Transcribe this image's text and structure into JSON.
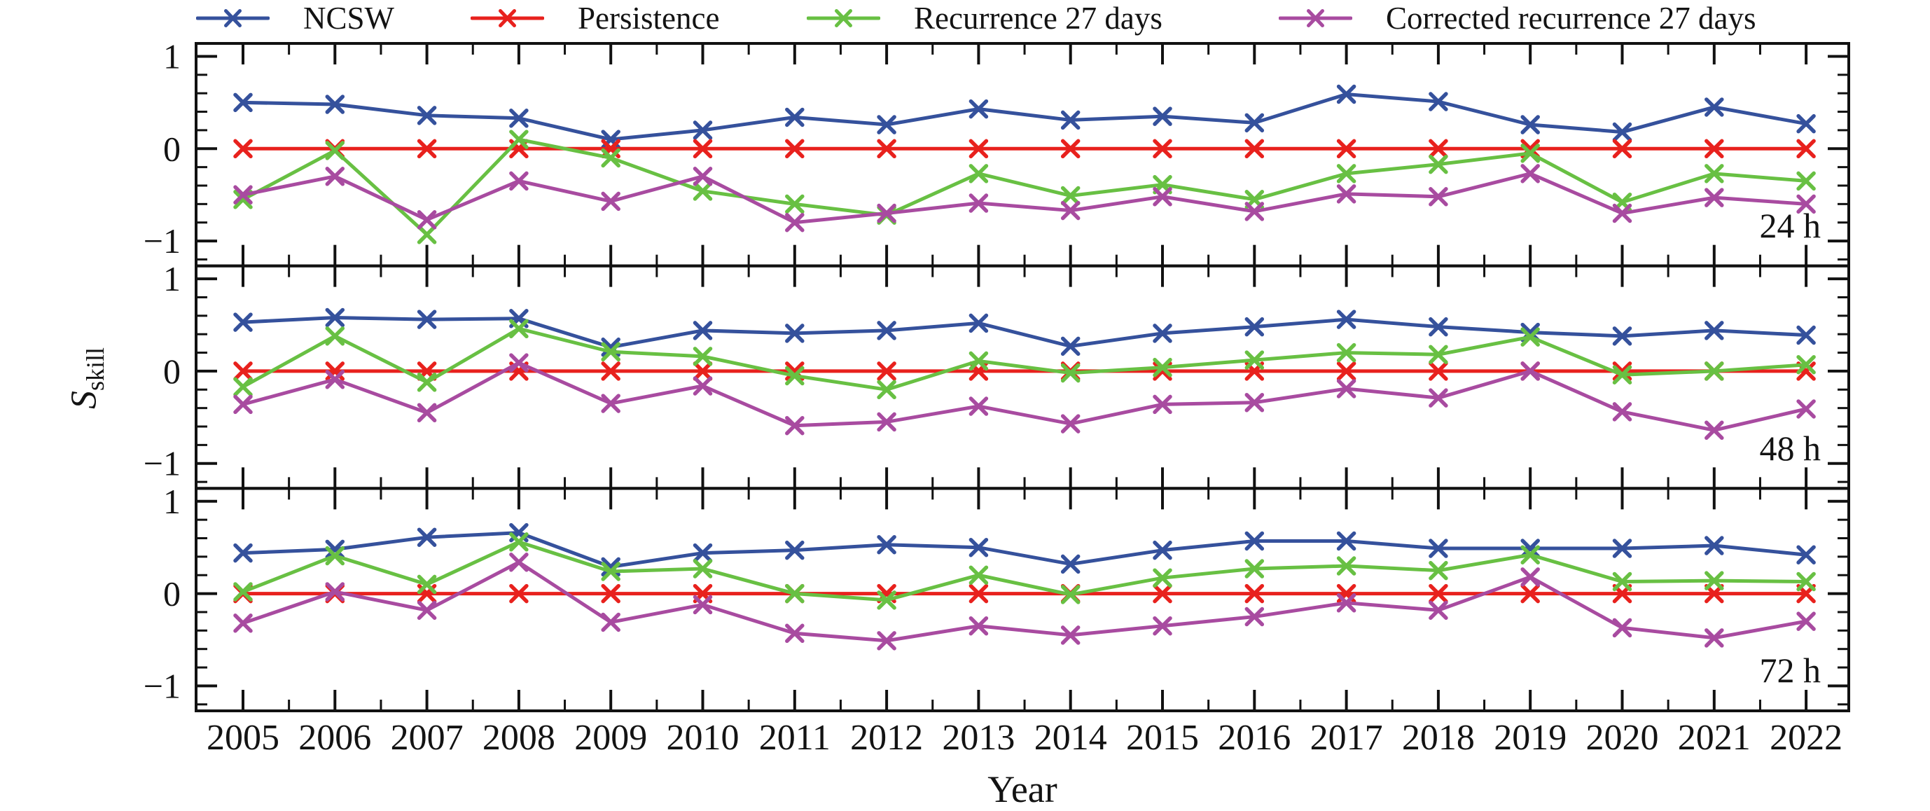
{
  "chart_data": {
    "type": "line",
    "title": "",
    "xlabel": "Year",
    "ylabel_base": "S",
    "ylabel_sub": "skill",
    "years": [
      2005,
      2006,
      2007,
      2008,
      2009,
      2010,
      2011,
      2012,
      2013,
      2014,
      2015,
      2016,
      2017,
      2018,
      2019,
      2020,
      2021,
      2022
    ],
    "ylim": [
      -1.27,
      1.14
    ],
    "yticks_major": [
      1,
      0,
      -1
    ],
    "ytick_labels": [
      "1",
      "0",
      "−1"
    ],
    "yticks_minor": [
      -1.2,
      -0.8,
      -0.6,
      -0.4,
      -0.2,
      0.2,
      0.4,
      0.6,
      0.8
    ],
    "x_minor_step": 0.5,
    "grid": false,
    "legend_position": "top",
    "legend": [
      {
        "label": "NCSW",
        "color": "#35519c"
      },
      {
        "label": "Persistence",
        "color": "#e8211d"
      },
      {
        "label": "Recurrence 27 days",
        "color": "#68c043"
      },
      {
        "label": "Corrected recurrence 27 days",
        "color": "#a84ba0"
      }
    ],
    "panels": [
      {
        "label": "24 h",
        "series": [
          [
            0.5,
            0.48,
            0.36,
            0.33,
            0.1,
            0.2,
            0.34,
            0.26,
            0.43,
            0.31,
            0.35,
            0.28,
            0.59,
            0.51,
            0.26,
            0.18,
            0.45,
            0.27
          ],
          [
            0,
            0,
            0,
            0,
            0,
            0,
            0,
            0,
            0,
            0,
            0,
            0,
            0,
            0,
            0,
            0,
            0,
            0
          ],
          [
            -0.55,
            -0.02,
            -0.93,
            0.1,
            -0.1,
            -0.46,
            -0.6,
            -0.72,
            -0.27,
            -0.51,
            -0.39,
            -0.55,
            -0.27,
            -0.17,
            -0.05,
            -0.58,
            -0.27,
            -0.35
          ],
          [
            -0.5,
            -0.3,
            -0.77,
            -0.35,
            -0.57,
            -0.3,
            -0.8,
            -0.7,
            -0.59,
            -0.67,
            -0.52,
            -0.68,
            -0.49,
            -0.52,
            -0.27,
            -0.7,
            -0.53,
            -0.6
          ]
        ]
      },
      {
        "label": "48 h",
        "series": [
          [
            0.53,
            0.58,
            0.56,
            0.57,
            0.26,
            0.44,
            0.41,
            0.44,
            0.52,
            0.27,
            0.41,
            0.48,
            0.56,
            0.48,
            0.42,
            0.38,
            0.44,
            0.39
          ],
          [
            0,
            0,
            0,
            0,
            0,
            0,
            0,
            0,
            0,
            0,
            0,
            0,
            0,
            0,
            0,
            0,
            0,
            0
          ],
          [
            -0.17,
            0.38,
            -0.12,
            0.46,
            0.21,
            0.16,
            -0.05,
            -0.2,
            0.11,
            -0.02,
            0.04,
            0.12,
            0.2,
            0.18,
            0.37,
            -0.04,
            0.0,
            0.07
          ],
          [
            -0.36,
            -0.09,
            -0.45,
            0.09,
            -0.35,
            -0.16,
            -0.59,
            -0.55,
            -0.38,
            -0.57,
            -0.36,
            -0.34,
            -0.19,
            -0.29,
            0.0,
            -0.44,
            -0.64,
            -0.41
          ]
        ]
      },
      {
        "label": "72 h",
        "series": [
          [
            0.44,
            0.48,
            0.61,
            0.66,
            0.29,
            0.44,
            0.47,
            0.53,
            0.5,
            0.32,
            0.47,
            0.57,
            0.57,
            0.49,
            0.49,
            0.49,
            0.52,
            0.42
          ],
          [
            0,
            0,
            0,
            0,
            0,
            0,
            0,
            0,
            0,
            0,
            0,
            0,
            0,
            0,
            0,
            0,
            0,
            0
          ],
          [
            0.02,
            0.41,
            0.1,
            0.56,
            0.24,
            0.27,
            0.0,
            -0.07,
            0.2,
            -0.01,
            0.17,
            0.27,
            0.3,
            0.25,
            0.42,
            0.13,
            0.14,
            0.13
          ],
          [
            -0.32,
            0.02,
            -0.18,
            0.34,
            -0.31,
            -0.12,
            -0.43,
            -0.51,
            -0.35,
            -0.45,
            -0.35,
            -0.25,
            -0.1,
            -0.18,
            0.18,
            -0.37,
            -0.48,
            -0.3
          ]
        ]
      }
    ]
  }
}
